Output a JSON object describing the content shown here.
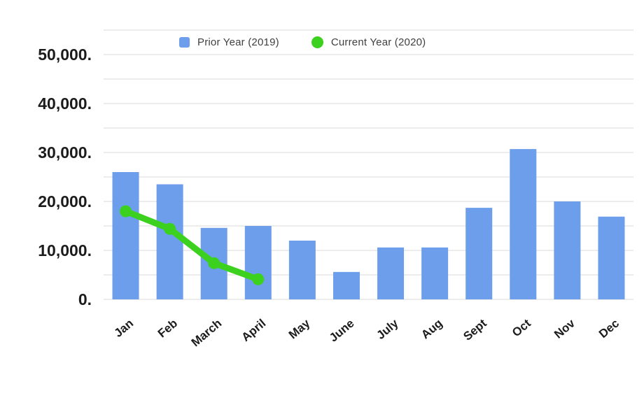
{
  "legend": {
    "items": [
      {
        "label": "Prior Year (2019)",
        "marker": "square",
        "color": "#6d9eeb"
      },
      {
        "label": "Current Year (2020)",
        "marker": "circle",
        "color": "#3bd11e"
      }
    ]
  },
  "chart_data": {
    "type": "bar",
    "subtype": "combo-bar-line",
    "title": "",
    "categories": [
      "Jan",
      "Feb",
      "March",
      "April",
      "May",
      "June",
      "July",
      "Aug",
      "Sept",
      "Oct",
      "Nov",
      "Dec"
    ],
    "series": [
      {
        "name": "Prior Year (2019)",
        "type": "bar",
        "color": "#6d9eeb",
        "values": [
          26000,
          23500,
          14600,
          15000,
          12000,
          5600,
          10600,
          10600,
          18700,
          30700,
          20000,
          16900
        ]
      },
      {
        "name": "Current Year (2020)",
        "type": "line",
        "color": "#3bd11e",
        "values": [
          18000,
          14400,
          7400,
          4100,
          null,
          null,
          null,
          null,
          null,
          null,
          null,
          null
        ]
      }
    ],
    "y_axis": {
      "min": 0,
      "max": 55000,
      "major_step": 10000,
      "minor_step": 5000,
      "tick_labels": [
        "0.",
        "10,000.",
        "20,000.",
        "30,000.",
        "40,000.",
        "50,000."
      ]
    },
    "x_axis": {
      "labels_rotation_deg": -40
    },
    "grid": true,
    "grid_color": "#d9d9d9",
    "legend_position": "top"
  }
}
